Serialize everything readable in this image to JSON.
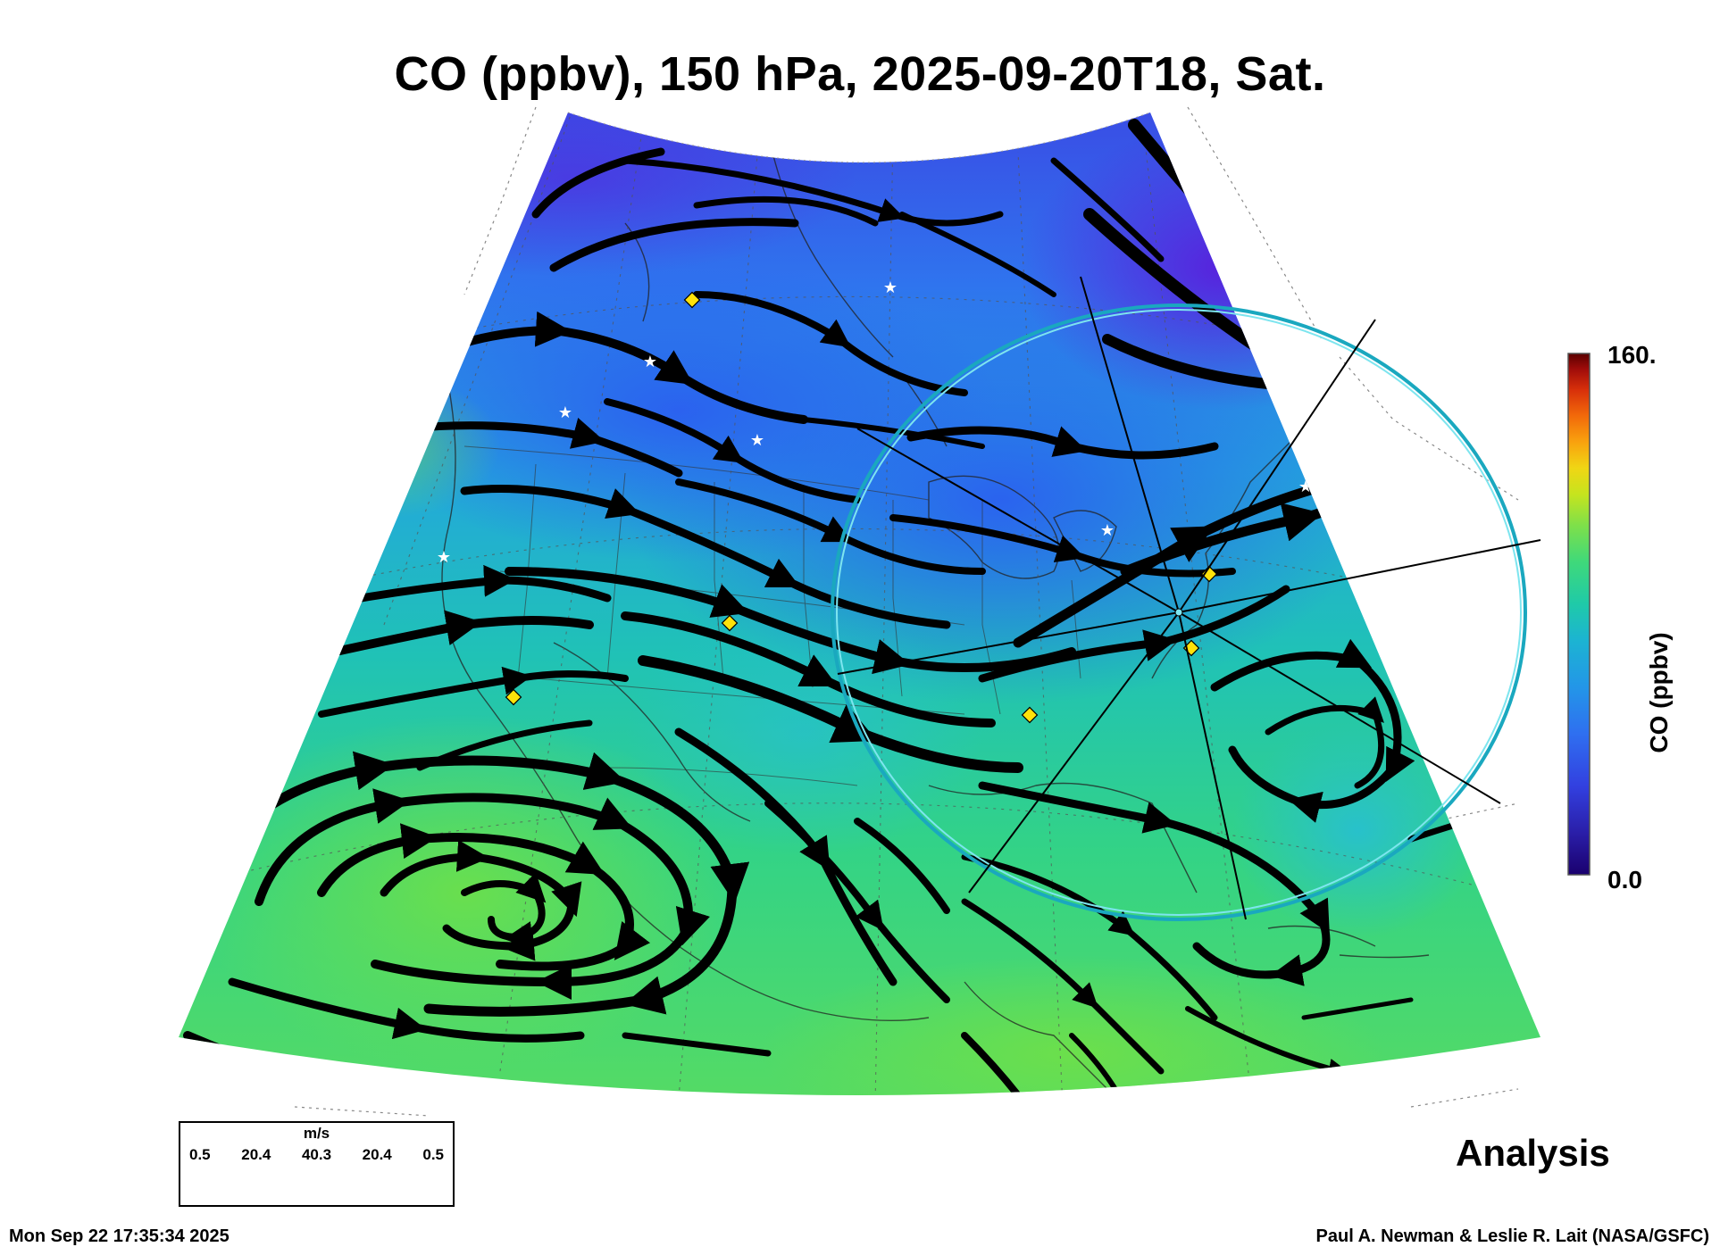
{
  "title": "CO (ppbv), 150 hPa, 2025-09-20T18, Sat.",
  "colorbar": {
    "label": "CO (ppbv)",
    "max_label": "160.",
    "min_label": "0.0",
    "colors": [
      "#1a006e",
      "#2a1ea8",
      "#3240e0",
      "#2f6ff0",
      "#2396e8",
      "#1cb4d2",
      "#1fcaa8",
      "#3fd97a",
      "#7ee04a",
      "#c6e41e",
      "#f0d614",
      "#f9a20e",
      "#f26a0a",
      "#d8300a",
      "#a00c0a",
      "#5a0000"
    ]
  },
  "vector_legend": {
    "unit": "m/s",
    "values": [
      "0.5",
      "20.4",
      "40.3",
      "20.4",
      "0.5"
    ]
  },
  "analysis_label": "Analysis",
  "timestamp": "Mon Sep 22 17:35:34 2025",
  "credit": "Paul A. Newman & Leslie R. Lait (NASA/GSFC)",
  "field_colors": {
    "north_blue": "#3d4fe6",
    "central_blue": "#2a8ce6",
    "cyan": "#22c2d0",
    "green": "#46d86a",
    "ring": "#26c6d6"
  }
}
